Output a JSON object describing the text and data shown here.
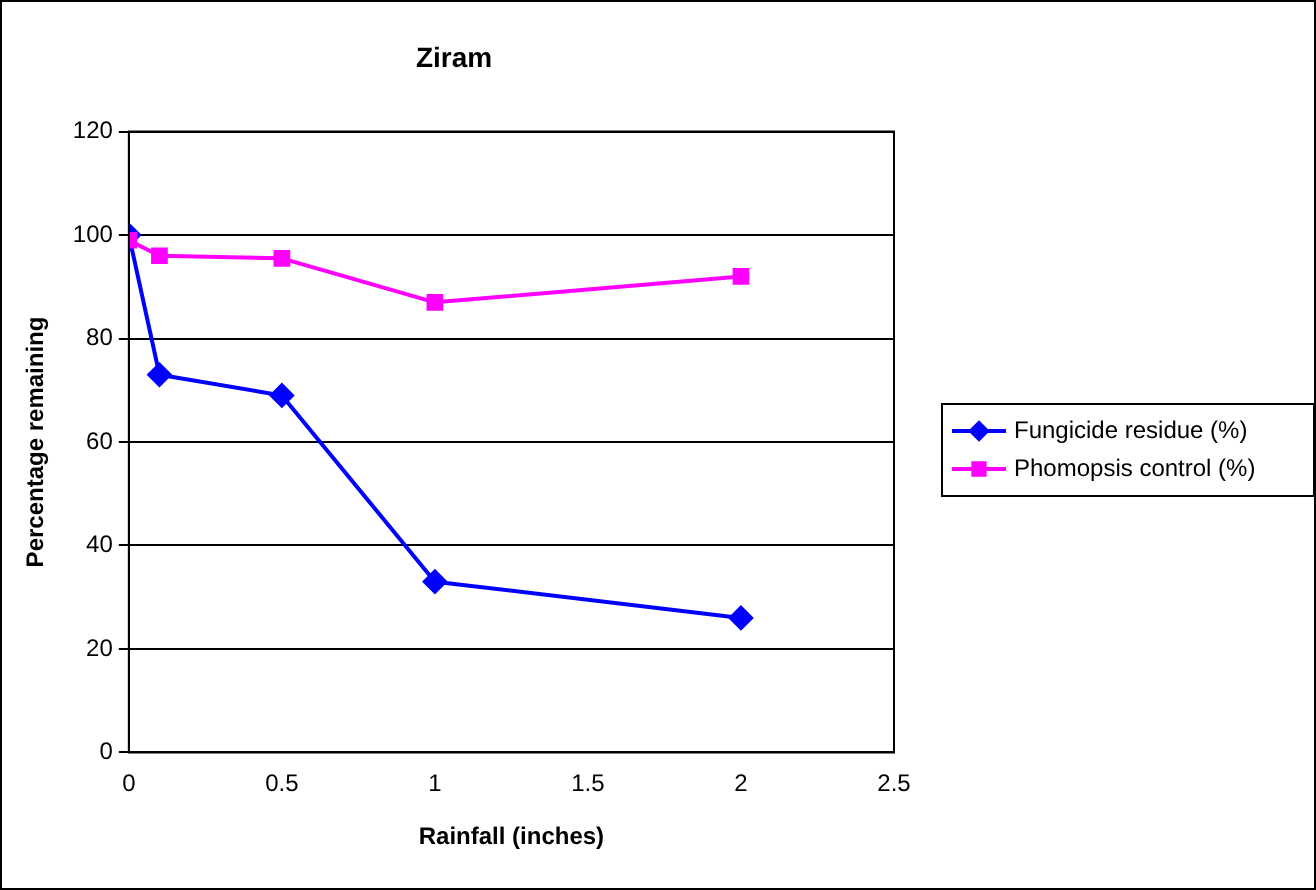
{
  "chart_data": {
    "type": "line",
    "title": "Ziram",
    "xlabel": "Rainfall (inches)",
    "ylabel": "Percentage remaining",
    "xlim": [
      0,
      2.5
    ],
    "xticks": [
      0,
      0.5,
      1,
      1.5,
      2,
      2.5
    ],
    "ylim": [
      0,
      120
    ],
    "yticks": [
      0,
      20,
      40,
      60,
      80,
      100,
      120
    ],
    "grid": "y",
    "legend": "right",
    "line_style": "solid",
    "series": [
      {
        "name": "Fungicide residue (%)",
        "color": "#0000ff",
        "marker": "diamond",
        "x": [
          0,
          0.1,
          0.5,
          1,
          2
        ],
        "values": [
          100,
          73,
          69,
          33,
          26
        ]
      },
      {
        "name": "Phomopsis control (%)",
        "color": "#ff00ff",
        "marker": "square",
        "x": [
          0,
          0.1,
          0.5,
          1,
          2
        ],
        "values": [
          99,
          96,
          95.5,
          87,
          92
        ]
      }
    ]
  }
}
